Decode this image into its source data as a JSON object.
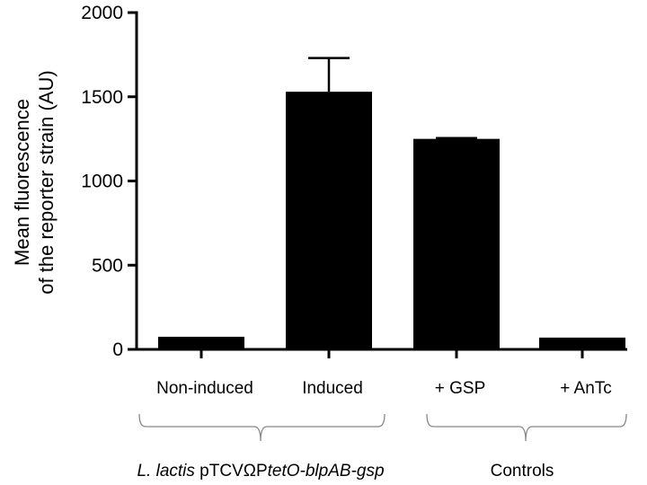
{
  "chart_data": {
    "type": "bar",
    "ylabel": [
      "Mean fluorescence",
      "of the reporter strain (AU)"
    ],
    "ylim": [
      0,
      2000
    ],
    "yticks": [
      "0",
      "500",
      "1000",
      "1500",
      "2000"
    ],
    "categories": [
      "Non-induced",
      "Induced",
      "+ GSP",
      "+ AnTc"
    ],
    "values": [
      75,
      1530,
      1250,
      70
    ],
    "errors": [
      0,
      200,
      5,
      0
    ],
    "groups": [
      {
        "label_parts": [
          {
            "text": "L. lactis",
            "italic": true
          },
          {
            "text": " pTCVΩP",
            "italic": false
          },
          {
            "text": "tetO-blpAB-gsp",
            "italic": true
          }
        ],
        "categories": [
          "Non-induced",
          "Induced"
        ]
      },
      {
        "label_parts": [
          {
            "text": "Controls",
            "italic": false
          }
        ],
        "categories": [
          "+ GSP",
          "+ AnTc"
        ]
      }
    ],
    "colors": {
      "bar": "#000000",
      "bracket": "#888888"
    }
  }
}
